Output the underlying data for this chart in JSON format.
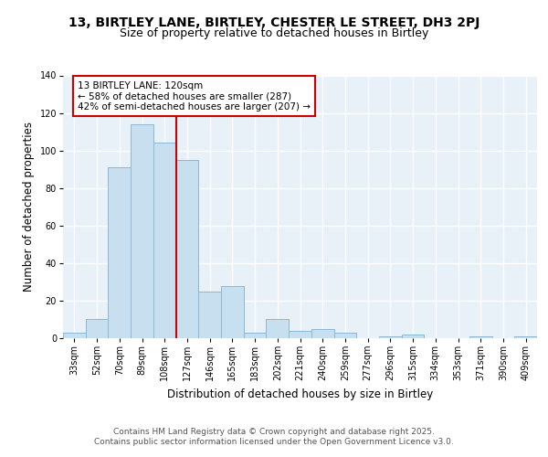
{
  "title_line1": "13, BIRTLEY LANE, BIRTLEY, CHESTER LE STREET, DH3 2PJ",
  "title_line2": "Size of property relative to detached houses in Birtley",
  "xlabel": "Distribution of detached houses by size in Birtley",
  "ylabel": "Number of detached properties",
  "categories": [
    "33sqm",
    "52sqm",
    "70sqm",
    "89sqm",
    "108sqm",
    "127sqm",
    "146sqm",
    "165sqm",
    "183sqm",
    "202sqm",
    "221sqm",
    "240sqm",
    "259sqm",
    "277sqm",
    "296sqm",
    "315sqm",
    "334sqm",
    "353sqm",
    "371sqm",
    "390sqm",
    "409sqm"
  ],
  "values": [
    3,
    10,
    91,
    114,
    104,
    95,
    25,
    28,
    3,
    10,
    4,
    5,
    3,
    0,
    1,
    2,
    0,
    0,
    1,
    0,
    1
  ],
  "bar_color": "#c8dff0",
  "bar_edgecolor": "#8ab8d8",
  "vline_x": 5.0,
  "vline_color": "#cc0000",
  "annotation_title": "13 BIRTLEY LANE: 120sqm",
  "annotation_line2": "← 58% of detached houses are smaller (287)",
  "annotation_line3": "42% of semi-detached houses are larger (207) →",
  "annotation_box_edgecolor": "#cc0000",
  "annotation_box_facecolor": "#ffffff",
  "ylim": [
    0,
    140
  ],
  "yticks": [
    0,
    20,
    40,
    60,
    80,
    100,
    120,
    140
  ],
  "footer_line1": "Contains HM Land Registry data © Crown copyright and database right 2025.",
  "footer_line2": "Contains public sector information licensed under the Open Government Licence v3.0.",
  "background_color": "#ffffff",
  "plot_bg_color": "#e8f0f8",
  "grid_color": "#ffffff",
  "title_fontsize": 10,
  "subtitle_fontsize": 9,
  "axis_label_fontsize": 8.5,
  "tick_fontsize": 7,
  "annotation_fontsize": 7.5,
  "footer_fontsize": 6.5
}
